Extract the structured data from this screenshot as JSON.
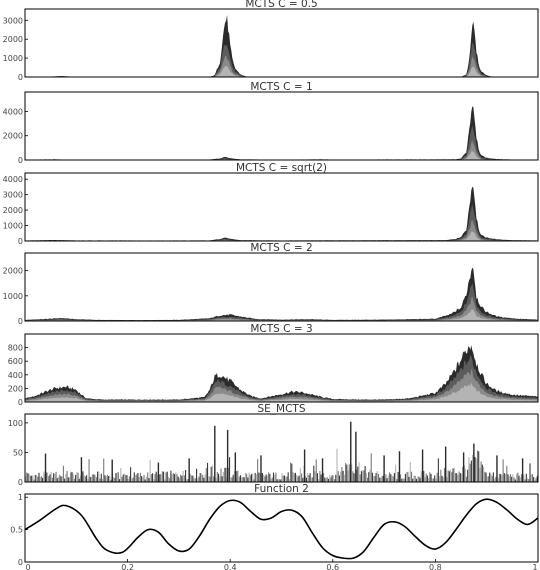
{
  "chart_data": [
    {
      "type": "area",
      "title": "MCTS C = 0.5",
      "ylim": [
        0,
        3600
      ],
      "yticks": [
        0,
        1000,
        2000,
        3000
      ],
      "ytick_labels": [
        "0",
        "1000",
        "2000",
        "3000"
      ],
      "colors": [
        "#b4b4b4",
        "#8a8a8a",
        "#5c5c5c",
        "#2b2b2b"
      ],
      "envelope": {
        "x": [
          0,
          0.05,
          0.07,
          0.09,
          0.36,
          0.37,
          0.38,
          0.385,
          0.39,
          0.393,
          0.396,
          0.4,
          0.405,
          0.41,
          0.42,
          0.43,
          0.44,
          0.85,
          0.86,
          0.865,
          0.87,
          0.873,
          0.876,
          0.88,
          0.885,
          0.89,
          0.9,
          0.91,
          1.0
        ],
        "y": [
          0,
          20,
          60,
          20,
          0,
          120,
          900,
          2200,
          3300,
          3500,
          3000,
          1800,
          900,
          500,
          150,
          40,
          0,
          0,
          150,
          800,
          2500,
          3600,
          3000,
          1600,
          700,
          300,
          100,
          20,
          0
        ]
      },
      "layer_fractions": [
        0.18,
        0.35,
        0.62,
        1.0
      ]
    },
    {
      "type": "area",
      "title": "MCTS C = 1",
      "ylim": [
        0,
        5600
      ],
      "yticks": [
        0,
        2000,
        4000
      ],
      "ytick_labels": [
        "0",
        "2000",
        "4000"
      ],
      "colors": [
        "#b4b4b4",
        "#8a8a8a",
        "#5c5c5c",
        "#2b2b2b"
      ],
      "envelope": {
        "x": [
          0,
          0.06,
          0.09,
          0.36,
          0.38,
          0.39,
          0.4,
          0.42,
          0.5,
          0.58,
          0.6,
          0.84,
          0.85,
          0.86,
          0.865,
          0.87,
          0.873,
          0.876,
          0.88,
          0.885,
          0.89,
          0.9,
          0.92,
          0.96,
          1.0
        ],
        "y": [
          40,
          60,
          40,
          40,
          150,
          300,
          150,
          60,
          40,
          60,
          40,
          60,
          150,
          700,
          2500,
          4600,
          5500,
          4200,
          2200,
          900,
          400,
          200,
          80,
          40,
          30
        ]
      },
      "layer_fractions": [
        0.15,
        0.32,
        0.6,
        1.0
      ]
    },
    {
      "type": "area",
      "title": "MCTS C = sqrt(2)",
      "ylim": [
        0,
        4400
      ],
      "yticks": [
        0,
        1000,
        2000,
        3000,
        4000
      ],
      "ytick_labels": [
        "0",
        "1000",
        "2000",
        "3000",
        "4000"
      ],
      "colors": [
        "#b4b4b4",
        "#8a8a8a",
        "#5c5c5c",
        "#2b2b2b"
      ],
      "envelope": {
        "x": [
          0,
          0.06,
          0.1,
          0.36,
          0.38,
          0.39,
          0.4,
          0.42,
          0.5,
          0.6,
          0.82,
          0.84,
          0.85,
          0.86,
          0.865,
          0.87,
          0.873,
          0.876,
          0.88,
          0.885,
          0.89,
          0.9,
          0.92,
          0.95,
          1.0
        ],
        "y": [
          40,
          70,
          40,
          40,
          150,
          250,
          150,
          60,
          40,
          50,
          60,
          150,
          300,
          800,
          2200,
          3800,
          4300,
          3400,
          1800,
          800,
          400,
          250,
          120,
          60,
          40
        ]
      },
      "layer_fractions": [
        0.16,
        0.34,
        0.62,
        1.0
      ]
    },
    {
      "type": "area",
      "title": "MCTS C = 2",
      "ylim": [
        0,
        2700
      ],
      "yticks": [
        0,
        1000,
        2000
      ],
      "ytick_labels": [
        "0",
        "1000",
        "2000"
      ],
      "colors": [
        "#b4b4b4",
        "#8a8a8a",
        "#5c5c5c",
        "#2b2b2b"
      ],
      "envelope": {
        "x": [
          0,
          0.04,
          0.07,
          0.1,
          0.14,
          0.2,
          0.3,
          0.36,
          0.38,
          0.4,
          0.42,
          0.45,
          0.5,
          0.55,
          0.6,
          0.7,
          0.8,
          0.83,
          0.85,
          0.86,
          0.87,
          0.873,
          0.876,
          0.88,
          0.89,
          0.9,
          0.92,
          0.96,
          1.0
        ],
        "y": [
          50,
          90,
          130,
          80,
          50,
          40,
          50,
          120,
          250,
          280,
          200,
          90,
          60,
          80,
          50,
          60,
          100,
          300,
          600,
          1200,
          2300,
          2600,
          2000,
          1100,
          600,
          400,
          200,
          100,
          60
        ]
      },
      "layer_fractions": [
        0.2,
        0.4,
        0.66,
        1.0
      ]
    },
    {
      "type": "area",
      "title": "MCTS C = 3",
      "ylim": [
        0,
        1000
      ],
      "yticks": [
        0,
        200,
        400,
        600,
        800
      ],
      "ytick_labels": [
        "0",
        "200",
        "400",
        "600",
        "800"
      ],
      "colors": [
        "#b4b4b4",
        "#8a8a8a",
        "#5c5c5c",
        "#2b2b2b"
      ],
      "envelope": {
        "x": [
          0,
          0.02,
          0.04,
          0.06,
          0.08,
          0.1,
          0.11,
          0.12,
          0.15,
          0.2,
          0.3,
          0.35,
          0.36,
          0.37,
          0.38,
          0.39,
          0.4,
          0.42,
          0.44,
          0.46,
          0.5,
          0.52,
          0.54,
          0.56,
          0.58,
          0.6,
          0.65,
          0.7,
          0.75,
          0.8,
          0.82,
          0.84,
          0.85,
          0.86,
          0.87,
          0.875,
          0.88,
          0.89,
          0.9,
          0.92,
          0.95,
          0.98,
          1.0
        ],
        "y": [
          60,
          100,
          170,
          230,
          250,
          200,
          120,
          60,
          40,
          40,
          40,
          80,
          200,
          420,
          460,
          400,
          350,
          200,
          100,
          60,
          130,
          170,
          160,
          120,
          80,
          50,
          40,
          40,
          60,
          150,
          300,
          550,
          700,
          860,
          960,
          800,
          650,
          450,
          300,
          180,
          120,
          100,
          90
        ]
      },
      "layer_fractions": [
        0.3,
        0.52,
        0.76,
        1.0
      ]
    },
    {
      "type": "bar",
      "title": "SE_MCTS",
      "ylim": [
        0,
        115
      ],
      "yticks": [
        0,
        50,
        100
      ],
      "ytick_labels": [
        "0",
        "50",
        "100"
      ],
      "colors": [
        "#b4b4b4",
        "#7a7a7a",
        "#3a3a3a"
      ],
      "base": {
        "x": [
          0,
          0.1,
          0.2,
          0.3,
          0.38,
          0.42,
          0.5,
          0.6,
          0.62,
          0.64,
          0.66,
          0.7,
          0.8,
          0.86,
          0.88,
          0.9,
          1.0
        ],
        "y": [
          12,
          14,
          12,
          14,
          20,
          14,
          12,
          14,
          25,
          40,
          20,
          12,
          14,
          25,
          45,
          14,
          10
        ]
      },
      "spikes": [
        {
          "x": 0.04,
          "y": 48
        },
        {
          "x": 0.11,
          "y": 42
        },
        {
          "x": 0.17,
          "y": 38
        },
        {
          "x": 0.26,
          "y": 33
        },
        {
          "x": 0.32,
          "y": 40
        },
        {
          "x": 0.37,
          "y": 95
        },
        {
          "x": 0.395,
          "y": 88
        },
        {
          "x": 0.41,
          "y": 50
        },
        {
          "x": 0.46,
          "y": 45
        },
        {
          "x": 0.545,
          "y": 55
        },
        {
          "x": 0.58,
          "y": 40
        },
        {
          "x": 0.635,
          "y": 102
        },
        {
          "x": 0.645,
          "y": 85
        },
        {
          "x": 0.7,
          "y": 45
        },
        {
          "x": 0.73,
          "y": 52
        },
        {
          "x": 0.775,
          "y": 55
        },
        {
          "x": 0.82,
          "y": 60
        },
        {
          "x": 0.855,
          "y": 50
        },
        {
          "x": 0.875,
          "y": 65
        },
        {
          "x": 0.92,
          "y": 45
        },
        {
          "x": 0.97,
          "y": 40
        }
      ]
    },
    {
      "type": "line",
      "title": "Function 2",
      "ylim": [
        0,
        1.05
      ],
      "yticks": [
        0,
        0.5,
        1
      ],
      "ytick_labels": [
        "0",
        "0.5",
        "1"
      ],
      "color": "#000000",
      "x": [
        0,
        0.03,
        0.06,
        0.08,
        0.11,
        0.14,
        0.16,
        0.19,
        0.22,
        0.24,
        0.26,
        0.28,
        0.3,
        0.32,
        0.34,
        0.36,
        0.38,
        0.4,
        0.42,
        0.44,
        0.46,
        0.48,
        0.5,
        0.52,
        0.54,
        0.56,
        0.58,
        0.6,
        0.62,
        0.64,
        0.66,
        0.68,
        0.7,
        0.72,
        0.74,
        0.76,
        0.78,
        0.8,
        0.82,
        0.84,
        0.86,
        0.88,
        0.9,
        0.92,
        0.94,
        0.96,
        0.98,
        1.0
      ],
      "y": [
        0.5,
        0.65,
        0.82,
        0.87,
        0.72,
        0.35,
        0.18,
        0.15,
        0.38,
        0.5,
        0.46,
        0.28,
        0.17,
        0.2,
        0.4,
        0.66,
        0.86,
        0.95,
        0.92,
        0.78,
        0.66,
        0.68,
        0.78,
        0.8,
        0.7,
        0.45,
        0.22,
        0.1,
        0.06,
        0.06,
        0.16,
        0.38,
        0.58,
        0.62,
        0.55,
        0.4,
        0.26,
        0.2,
        0.3,
        0.5,
        0.72,
        0.9,
        0.97,
        0.92,
        0.8,
        0.66,
        0.58,
        0.68
      ]
    }
  ],
  "x_axis": {
    "ticks": [
      0,
      0.2,
      0.4,
      0.6,
      0.8,
      1
    ],
    "labels": [
      "0",
      "0.2",
      "0.4",
      "0.6",
      "0.8",
      "1"
    ]
  }
}
